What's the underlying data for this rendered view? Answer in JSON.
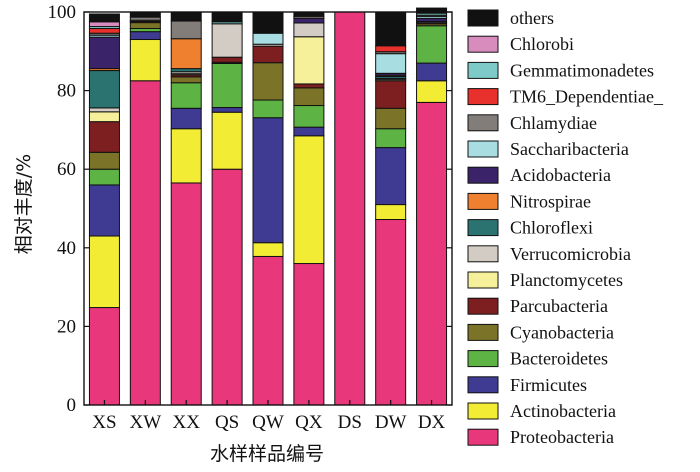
{
  "chart_data": {
    "type": "bar",
    "stacked": true,
    "xlabel": "水样样品编号",
    "ylabel": "相对丰度/%",
    "ylim": [
      0,
      100
    ],
    "yticks": [
      0,
      20,
      40,
      60,
      80,
      100
    ],
    "legend_position": "right",
    "categories": [
      "XS",
      "XW",
      "XX",
      "QS",
      "QW",
      "QX",
      "DS",
      "DW",
      "DX"
    ],
    "series": [
      {
        "name": "Proteobacteria",
        "color": "#e8377a",
        "values": [
          24.8,
          82.5,
          56.5,
          60.0,
          37.8,
          36.0,
          100.0,
          47.2,
          77.0
        ]
      },
      {
        "name": "Actinobacteria",
        "color": "#f3ec35",
        "values": [
          18.2,
          10.5,
          13.8,
          14.5,
          3.5,
          32.5,
          0,
          3.8,
          5.5
        ]
      },
      {
        "name": "Firmicutes",
        "color": "#3f3a92",
        "values": [
          13.0,
          2.0,
          5.2,
          1.2,
          31.8,
          2.2,
          0,
          14.5,
          4.5
        ]
      },
      {
        "name": "Bacteroidetes",
        "color": "#5db444",
        "values": [
          4.0,
          0.8,
          6.5,
          11.2,
          4.5,
          5.5,
          0,
          4.8,
          9.5
        ]
      },
      {
        "name": "Cyanobacteria",
        "color": "#7a7328",
        "values": [
          4.3,
          1.5,
          1.5,
          0.3,
          9.5,
          4.5,
          0,
          5.2,
          0.5
        ]
      },
      {
        "name": "Parcubacteria",
        "color": "#7d1f21",
        "values": [
          7.8,
          0.3,
          0.5,
          1.3,
          4.2,
          1.0,
          0,
          7.0,
          0.3
        ]
      },
      {
        "name": "Planctomycetes",
        "color": "#f7f09a",
        "values": [
          2.5,
          0,
          0.3,
          0,
          0,
          12.0,
          0,
          0.3,
          0
        ]
      },
      {
        "name": "Verrucomicrobia",
        "color": "#d2ccc4",
        "values": [
          1.0,
          0.3,
          0.5,
          8.5,
          0.5,
          3.5,
          0,
          0.3,
          0.3
        ]
      },
      {
        "name": "Chloroflexi",
        "color": "#2b7371",
        "values": [
          9.5,
          0,
          0.8,
          0,
          0,
          0,
          0,
          0.5,
          0
        ]
      },
      {
        "name": "Nitrospirae",
        "color": "#ee8030",
        "values": [
          0.5,
          0,
          7.6,
          0,
          0,
          0,
          0,
          0.3,
          0
        ]
      },
      {
        "name": "Acidobacteria",
        "color": "#3a2368",
        "values": [
          8.0,
          0,
          0,
          0,
          0,
          1.2,
          0,
          0.5,
          0.8
        ]
      },
      {
        "name": "Saccharibacteria",
        "color": "#a8dde2",
        "values": [
          0.5,
          0,
          0,
          0,
          2.8,
          0,
          0,
          5.0,
          0.5
        ]
      },
      {
        "name": "Chlamydiae",
        "color": "#827d79",
        "values": [
          0.5,
          0.8,
          4.5,
          0,
          0,
          0.5,
          0,
          0.5,
          0.3
        ]
      },
      {
        "name": "TM6_Dependentiae_",
        "color": "#e8302c",
        "values": [
          1.2,
          0,
          0,
          0,
          0,
          0,
          0,
          1.5,
          0
        ]
      },
      {
        "name": "Gemmatimonadetes",
        "color": "#7ecac9",
        "values": [
          0.5,
          0,
          0,
          0.5,
          0,
          0,
          0,
          0,
          0.5
        ]
      },
      {
        "name": "Chlorobi",
        "color": "#d88bbd",
        "values": [
          1.2,
          0,
          0,
          0,
          0,
          0,
          0,
          0,
          0
        ]
      },
      {
        "name": "others",
        "color": "#111111",
        "values": [
          2.0,
          1.3,
          2.3,
          2.5,
          5.4,
          1.1,
          0,
          8.6,
          1.3
        ]
      }
    ]
  }
}
